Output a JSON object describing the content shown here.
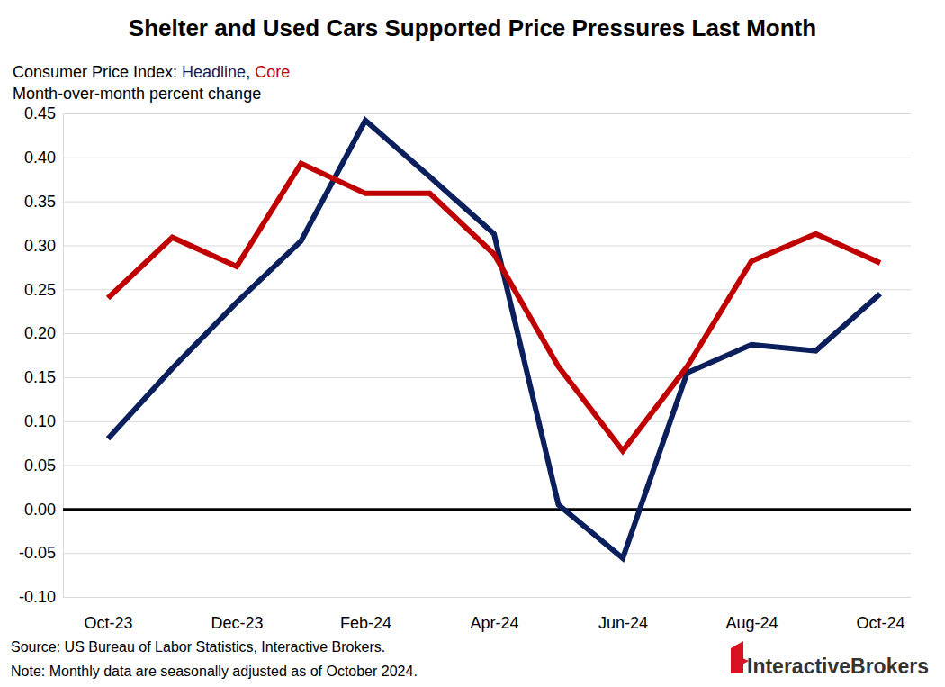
{
  "chart_data": {
    "type": "line",
    "title": "Shelter and Used Cars Supported Price Pressures Last Month",
    "subtitle": "Consumer Price Index: Headline, Core",
    "y_label": "Month-over-month percent change",
    "source": "Source: US Bureau of Labor Statistics, Interactive Brokers.",
    "note": "Note: Monthly data are seasonally adjusted as of October 2024.",
    "logo": "InteractiveBrokers",
    "categories": [
      "Oct-23",
      null,
      "Dec-23",
      null,
      "Feb-24",
      null,
      "Apr-24",
      null,
      "Jun-24",
      null,
      "Aug-24",
      null,
      "Oct-24"
    ],
    "series": [
      {
        "name": "Headline",
        "color": "#0b1f5c",
        "values": [
          0.08,
          0.16,
          0.235,
          0.305,
          0.442,
          0.378,
          0.313,
          0.005,
          -0.056,
          0.155,
          0.187,
          0.18,
          0.245
        ]
      },
      {
        "name": "Core",
        "color": "#c00000",
        "values": [
          0.24,
          0.309,
          0.276,
          0.393,
          0.359,
          0.359,
          0.29,
          0.162,
          0.066,
          0.162,
          0.282,
          0.313,
          0.28
        ]
      }
    ],
    "ylim": [
      -0.1,
      0.45
    ],
    "yticks": [
      {
        "value": -0.1,
        "label": "-0.10"
      },
      -0.05,
      {
        "value": 0,
        "label": "0.00"
      },
      0.05,
      {
        "value": 0.1,
        "label": "0.10"
      },
      0.15,
      {
        "value": 0.2,
        "label": "0.20"
      },
      0.25,
      {
        "value": 0.3,
        "label": "0.30"
      },
      0.35,
      {
        "value": 0.4,
        "label": "0.40"
      },
      0.45
    ],
    "grid": true
  }
}
